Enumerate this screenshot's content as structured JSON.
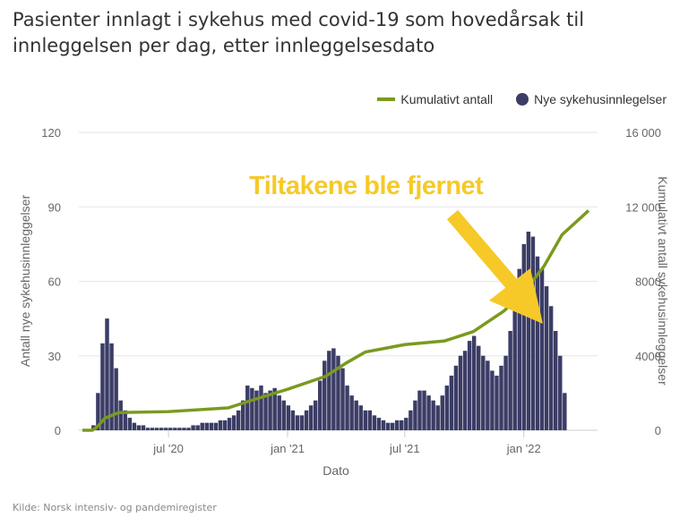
{
  "chart_data": {
    "type": "bar",
    "title": "Pasienter innlagt i sykehus med covid-19 som hovedårsak til innleggelsen per dag, etter innleggelsesdato",
    "xlabel": "Dato",
    "ylabel_left": "Antall nye sykehusinnleggelser",
    "ylabel_right": "Kumulativt antall sykehusinnleggelser",
    "ylim_left": [
      0,
      120
    ],
    "ylim_right": [
      0,
      16000
    ],
    "yticks_left": [
      "0",
      "30",
      "60",
      "90",
      "120"
    ],
    "yticks_right": [
      "0",
      "4000",
      "8000",
      "12 000",
      "16 000"
    ],
    "xticks": [
      {
        "date": "2020-07-01",
        "label": "jul '20"
      },
      {
        "date": "2021-01-01",
        "label": "jan '21"
      },
      {
        "date": "2021-07-01",
        "label": "jul '21"
      },
      {
        "date": "2022-01-01",
        "label": "jan '22"
      }
    ],
    "x_range": [
      "2020-02-19",
      "2022-04-11"
    ],
    "legend_position": "top-right",
    "series": [
      {
        "name": "Kumulativt antall",
        "type": "line",
        "color": "#7a9a1e",
        "points": [
          [
            "2020-02-19",
            0
          ],
          [
            "2020-03-05",
            0
          ],
          [
            "2020-03-12",
            150
          ],
          [
            "2020-03-25",
            650
          ],
          [
            "2020-04-15",
            950
          ],
          [
            "2020-07-01",
            1000
          ],
          [
            "2020-10-01",
            1200
          ],
          [
            "2020-11-15",
            1700
          ],
          [
            "2021-01-01",
            2200
          ],
          [
            "2021-03-01",
            2900
          ],
          [
            "2021-04-01",
            3600
          ],
          [
            "2021-05-01",
            4200
          ],
          [
            "2021-07-01",
            4600
          ],
          [
            "2021-09-01",
            4800
          ],
          [
            "2021-10-15",
            5300
          ],
          [
            "2021-12-01",
            6400
          ],
          [
            "2022-01-01",
            7400
          ],
          [
            "2022-02-01",
            8800
          ],
          [
            "2022-03-01",
            10500
          ],
          [
            "2022-04-11",
            11800
          ]
        ]
      },
      {
        "name": "Nye sykehusinnlegelser",
        "type": "bar",
        "color": "#3b3d66",
        "start": "2020-02-19",
        "interval_days": 7,
        "values": [
          0,
          0,
          2,
          15,
          35,
          45,
          35,
          25,
          12,
          8,
          5,
          3,
          2,
          2,
          1,
          1,
          1,
          1,
          1,
          1,
          1,
          1,
          1,
          1,
          2,
          2,
          3,
          3,
          3,
          3,
          4,
          4,
          5,
          6,
          8,
          12,
          18,
          17,
          16,
          18,
          15,
          16,
          17,
          14,
          12,
          10,
          8,
          6,
          6,
          8,
          10,
          12,
          20,
          28,
          32,
          33,
          30,
          25,
          18,
          14,
          12,
          10,
          8,
          8,
          6,
          5,
          4,
          3,
          3,
          4,
          4,
          5,
          8,
          12,
          16,
          16,
          14,
          12,
          10,
          14,
          18,
          22,
          26,
          30,
          32,
          36,
          38,
          34,
          30,
          28,
          24,
          22,
          26,
          30,
          40,
          55,
          65,
          75,
          80,
          78,
          70,
          65,
          58,
          50,
          40,
          30,
          15
        ]
      }
    ],
    "annotation": "Tiltakene ble fjernet",
    "source": "Kilde: Norsk intensiv- og pandemiregister"
  }
}
